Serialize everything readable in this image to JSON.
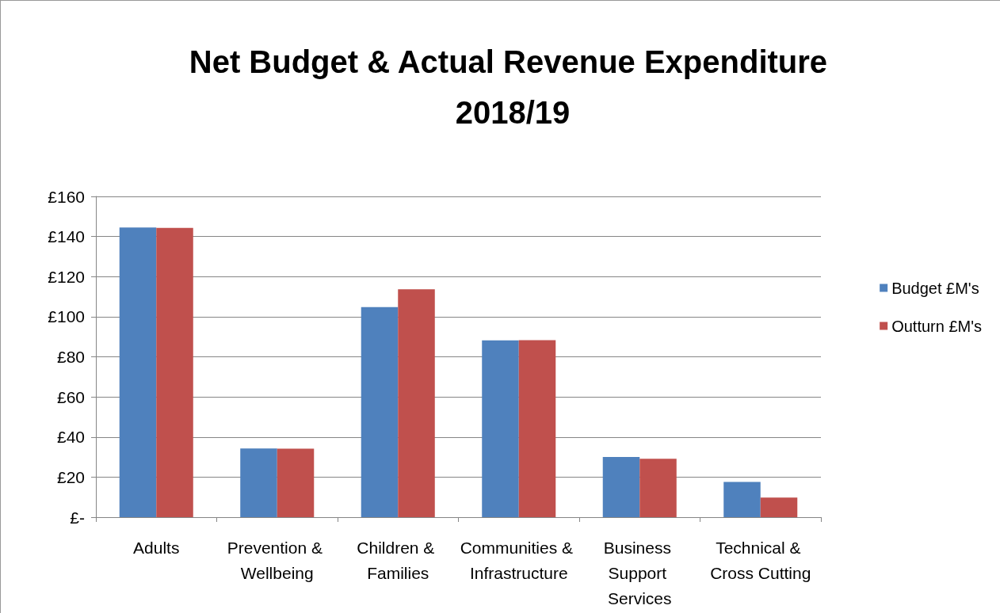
{
  "chart_data": {
    "type": "bar",
    "title": "Net Budget & Actual Revenue Expenditure 2018/19",
    "categories": [
      "Adults",
      "Prevention & Wellbeing",
      "Children & Families",
      "Communities & Infrastructure",
      "Business Support Services",
      "Technical & Cross Cutting"
    ],
    "series": [
      {
        "name": "Budget £M's",
        "color": "#4f81bd",
        "values": [
          144.5,
          34.3,
          104.8,
          88.2,
          30,
          17.6
        ]
      },
      {
        "name": "Outturn £M's",
        "color": "#c0504d",
        "values": [
          144.3,
          34.2,
          113.7,
          88.3,
          29.1,
          9.8
        ]
      }
    ],
    "ylim": [
      0,
      160
    ],
    "yticks": [
      {
        "value": 0,
        "label": "£-"
      },
      {
        "value": 20,
        "label": "£20"
      },
      {
        "value": 40,
        "label": "£40"
      },
      {
        "value": 60,
        "label": "£60"
      },
      {
        "value": 80,
        "label": "£80"
      },
      {
        "value": 100,
        "label": "£100"
      },
      {
        "value": 120,
        "label": "£120"
      },
      {
        "value": 140,
        "label": "£140"
      },
      {
        "value": 160,
        "label": "£160"
      }
    ],
    "grid": "y",
    "legend": "right"
  }
}
